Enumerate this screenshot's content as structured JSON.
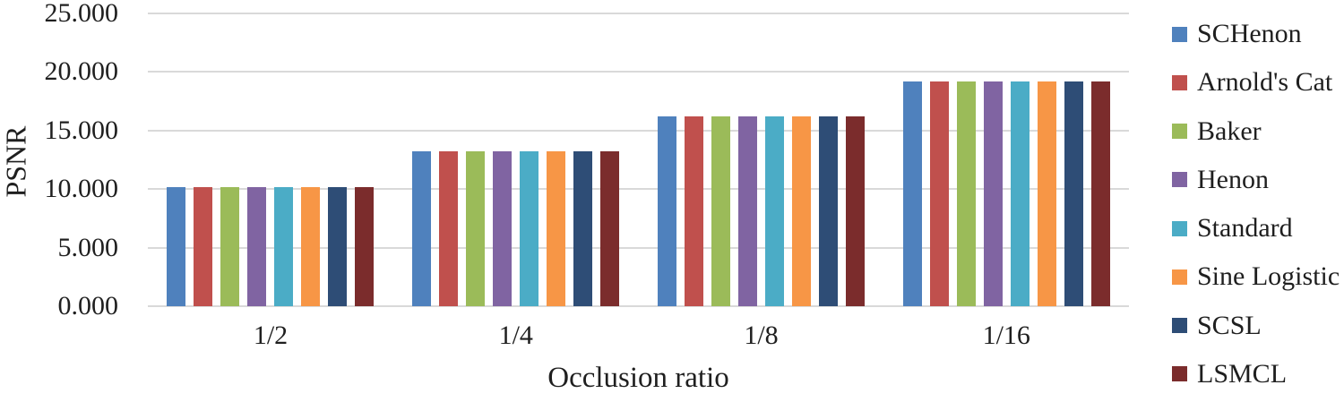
{
  "chart_data": {
    "type": "bar",
    "title": "",
    "xlabel": "Occlusion ratio",
    "ylabel": "PSNR",
    "categories": [
      "1/2",
      "1/4",
      "1/8",
      "1/16"
    ],
    "series": [
      {
        "name": "SCHenon",
        "color": "#4F81BD",
        "values": [
          10.2,
          13.2,
          16.2,
          19.2
        ]
      },
      {
        "name": "Arnold's Cat",
        "color": "#C0504D",
        "values": [
          10.2,
          13.2,
          16.2,
          19.2
        ]
      },
      {
        "name": "Baker",
        "color": "#9BBB59",
        "values": [
          10.2,
          13.2,
          16.2,
          19.2
        ]
      },
      {
        "name": "Henon",
        "color": "#8064A2",
        "values": [
          10.2,
          13.2,
          16.2,
          19.2
        ]
      },
      {
        "name": "Standard",
        "color": "#4BACC6",
        "values": [
          10.2,
          13.2,
          16.2,
          19.2
        ]
      },
      {
        "name": "Sine Logistic",
        "color": "#F79646",
        "values": [
          10.2,
          13.2,
          16.2,
          19.2
        ]
      },
      {
        "name": "SCSL",
        "color": "#2E4D76",
        "values": [
          10.2,
          13.2,
          16.2,
          19.2
        ]
      },
      {
        "name": "LSMCL",
        "color": "#7B2C2C",
        "values": [
          10.2,
          13.2,
          16.2,
          19.2
        ]
      }
    ],
    "ylim": [
      0,
      25
    ],
    "ytick_step": 5,
    "ytick_values": [
      0,
      5,
      10,
      15,
      20,
      25
    ],
    "ytick_labels": [
      "0.000",
      "5.000",
      "10.000",
      "15.000",
      "20.000",
      "25.000"
    ],
    "grid": true,
    "gridline_color": "#D9D9D9",
    "legend_position": "right"
  }
}
